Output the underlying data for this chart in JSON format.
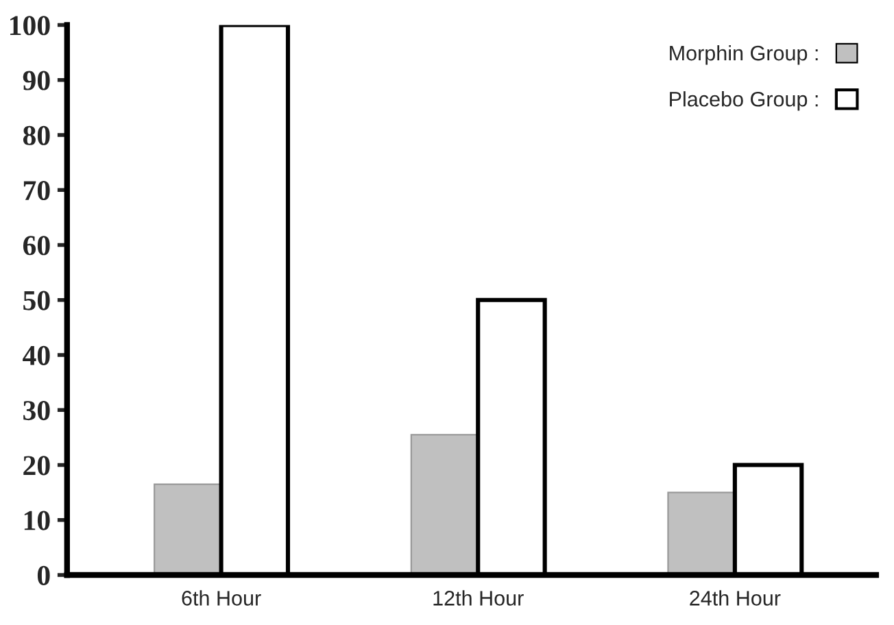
{
  "chart_data": {
    "type": "bar",
    "categories": [
      "6th Hour",
      "12th Hour",
      "24th Hour"
    ],
    "series": [
      {
        "name": "Morphin Group :",
        "color": "#c0c0c0",
        "values": [
          16.5,
          25.5,
          15
        ]
      },
      {
        "name": "Placebo Group :",
        "color": "#ffffff",
        "values": [
          100,
          50,
          20
        ]
      }
    ],
    "ylim": [
      0,
      100
    ],
    "yticks": [
      0,
      10,
      20,
      30,
      40,
      50,
      60,
      70,
      80,
      90,
      100
    ],
    "legend": "top right",
    "grid": false
  }
}
